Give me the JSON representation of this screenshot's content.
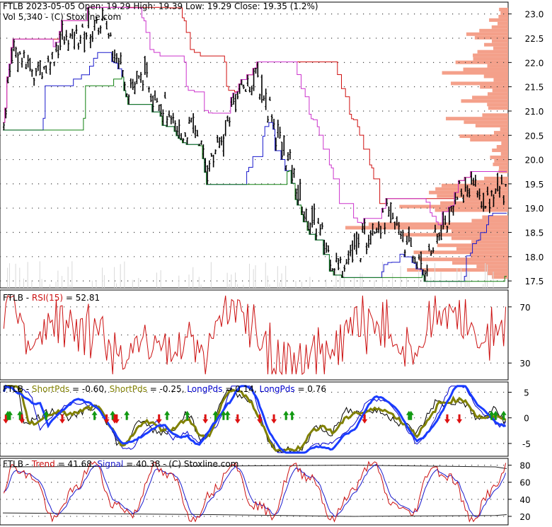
{
  "colors": {
    "price_bar": "#000000",
    "resistance_20": "#d01010",
    "resistance_10": "#cc33cc",
    "support_10": "#1a1acc",
    "support_20": "#108010",
    "volume_profile": "#f4a08a",
    "rsi": "#cc1111",
    "short_pds_fast": "#000000",
    "short_pds": "#808000",
    "long_pds_fast": "#0000cc",
    "long_pds": "#1a3cff",
    "trend": "#cc1111",
    "signal": "#1a1acc",
    "arrow_up": "#119911",
    "arrow_down": "#dd1111",
    "grid_dots": "#444444"
  },
  "header": {
    "line1": "FTLB  2023-05-05 Open: 19.29  High: 19.39  Low: 19.29  Close: 19.35 (1.2%)",
    "line2": "Vol 5,340   -  (C) Stoxline.com"
  },
  "rsi_panel": {
    "label_prefix": "FTLB - ",
    "label_rsi": "RSI(15)",
    "label_value": " = 52.81"
  },
  "pds_panel": {
    "label_prefix": "FTLB - ",
    "a_name": "ShortPds",
    "a_value": " = -0.60, ",
    "b_name": "ShortPds",
    "b_value": " = -0.25, ",
    "c_name": "LongPds",
    "c_value": " = 0.14, ",
    "d_name": "LongPds",
    "d_value": " = 0.76"
  },
  "trend_panel": {
    "label_prefix": "FTLB - ",
    "trend_name": "Trend",
    "trend_value": " = 41.68, ",
    "signal_name": "Signal",
    "signal_value": " = 40.38",
    "suffix": " - (C) Stoxline.com"
  },
  "chart_data": [
    {
      "type": "line",
      "panel": "price",
      "ylim": [
        17.4,
        23.2
      ],
      "yticks": [
        "17.5",
        "18.0",
        "18.5",
        "19.0",
        "19.5",
        "20.0",
        "20.5",
        "21.0",
        "21.5",
        "22.0",
        "22.5",
        "23.0"
      ],
      "note": "daily OHLC bars with 20/10-day high-low channels and a horizontal volume-by-price profile"
    },
    {
      "type": "line",
      "panel": "rsi",
      "series_name": "RSI(15)",
      "last_value": 52.81,
      "yticks": [
        "70",
        "30"
      ]
    },
    {
      "type": "line",
      "panel": "pds",
      "series": [
        {
          "name": "ShortPds",
          "last_value": -0.6
        },
        {
          "name": "ShortPds",
          "last_value": -0.25
        },
        {
          "name": "LongPds",
          "last_value": 0.14
        },
        {
          "name": "LongPds",
          "last_value": 0.76
        }
      ],
      "yticks": [
        "5",
        "0",
        "-5"
      ],
      "ylim": [
        -7.5,
        7
      ]
    },
    {
      "type": "line",
      "panel": "trend",
      "series": [
        {
          "name": "Trend",
          "last_value": 41.68
        },
        {
          "name": "Signal",
          "last_value": 40.38
        }
      ],
      "yticks": [
        "80",
        "60",
        "40",
        "20"
      ],
      "ylim": [
        10,
        88
      ]
    }
  ]
}
